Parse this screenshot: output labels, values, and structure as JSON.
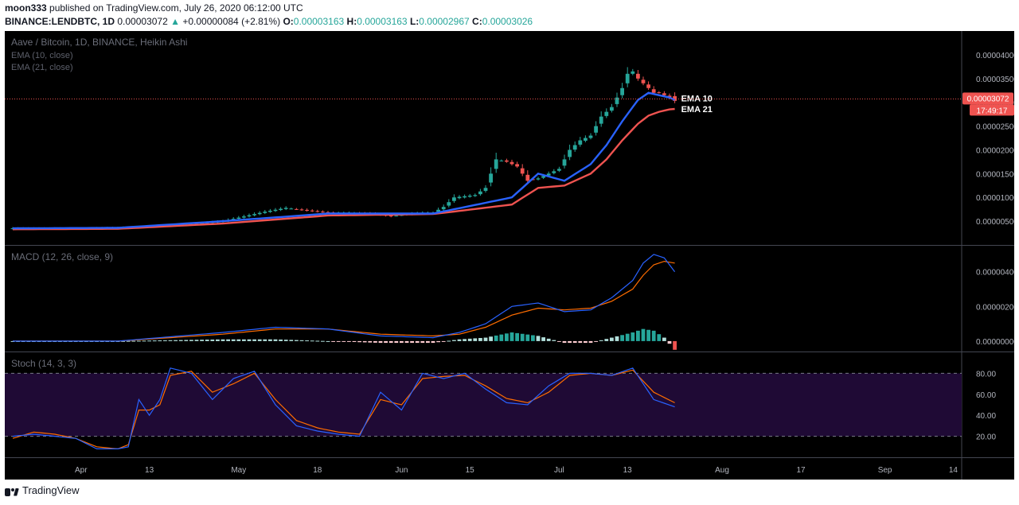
{
  "header": {
    "publisher": "moon333",
    "published_text": " published on TradingView.com, July 26, 2020 06:12:00 UTC",
    "symbol": "BINANCE:LENDBTC, 1D",
    "last": "0.00003072",
    "change": "+0.00000084 (+2.81%)",
    "o_label": "O:",
    "o": "0.00003163",
    "h_label": "H:",
    "h": "0.00003163",
    "l_label": "L:",
    "l": "0.00002967",
    "c_label": "C:",
    "c": "0.00003026"
  },
  "footer": {
    "brand": "TradingView"
  },
  "colors": {
    "up": "#26a69a",
    "down": "#ef5350",
    "ema10": "#2962ff",
    "ema21": "#ef5350",
    "macd": "#2962ff",
    "signal": "#ff6d00",
    "stoch_k": "#2962ff",
    "stoch_d": "#ff6d00",
    "stoch_band": "#1f0a35"
  },
  "chart_data": [
    {
      "type": "candlestick",
      "title": "Aave / Bitcoin, 1D, BINANCE, Heikin Ashi",
      "legend": [
        "EMA (10, close)",
        "EMA (21, close)"
      ],
      "annotations": [
        "EMA 10",
        "EMA 21"
      ],
      "price_label": "0.00003072",
      "countdown_label": "17:49:17",
      "y_ticks": [
        "0.00004000",
        "0.00003500",
        "0.00003000",
        "0.00002500",
        "0.00002000",
        "0.00001500",
        "0.00001000",
        "0.00000500"
      ],
      "y_tick_values": [
        4.0,
        3.5,
        3.0,
        2.5,
        2.0,
        1.5,
        1.0,
        0.5
      ],
      "y_unit_note_scale": 1e-05,
      "ylim": [
        0.0,
        4.5
      ],
      "x_ticks": [
        "Apr",
        "13",
        "May",
        "18",
        "Jun",
        "15",
        "Jul",
        "13",
        "Aug",
        "17",
        "Sep",
        "14"
      ],
      "x_tick_days": [
        13,
        26,
        43,
        58,
        74,
        87,
        104,
        117,
        135,
        150,
        166,
        179
      ],
      "series": [
        {
          "name": "EMA (10, close)",
          "x": [
            0,
            20,
            40,
            60,
            80,
            95,
            100,
            105,
            110,
            113,
            116,
            119,
            121,
            123,
            125,
            126
          ],
          "y": [
            0.35,
            0.36,
            0.5,
            0.66,
            0.66,
            1.0,
            1.5,
            1.35,
            1.7,
            2.1,
            2.6,
            3.05,
            3.2,
            3.15,
            3.1,
            3.05
          ]
        },
        {
          "name": "EMA (21, close)",
          "x": [
            0,
            20,
            40,
            60,
            80,
            95,
            100,
            105,
            110,
            113,
            116,
            119,
            121,
            123,
            125,
            126
          ],
          "y": [
            0.33,
            0.34,
            0.45,
            0.62,
            0.65,
            0.85,
            1.2,
            1.25,
            1.5,
            1.8,
            2.2,
            2.55,
            2.72,
            2.8,
            2.85,
            2.86
          ]
        },
        {
          "name": "Heikin Ashi close",
          "x": [
            0,
            10,
            20,
            30,
            40,
            48,
            52,
            56,
            60,
            64,
            68,
            72,
            76,
            78,
            80,
            82,
            84,
            88,
            90,
            92,
            94,
            96,
            98,
            100,
            102,
            104,
            106,
            108,
            110,
            112,
            114,
            116,
            117,
            118,
            119,
            120,
            121,
            122,
            123,
            124,
            125,
            126
          ],
          "y": [
            0.35,
            0.35,
            0.36,
            0.4,
            0.5,
            0.7,
            0.78,
            0.72,
            0.68,
            0.68,
            0.66,
            0.6,
            0.66,
            0.68,
            0.68,
            0.8,
            1.0,
            1.05,
            1.2,
            1.8,
            1.75,
            1.65,
            1.35,
            1.4,
            1.5,
            1.6,
            2.0,
            2.2,
            2.3,
            2.7,
            2.9,
            3.3,
            3.6,
            3.65,
            3.5,
            3.4,
            3.3,
            3.2,
            3.2,
            3.15,
            3.1,
            3.03
          ],
          "open": [
            0.34,
            0.35,
            0.35,
            0.39,
            0.48,
            0.67,
            0.75,
            0.74,
            0.69,
            0.67,
            0.67,
            0.62,
            0.64,
            0.67,
            0.67,
            0.76,
            0.95,
            1.02,
            1.15,
            1.7,
            1.78,
            1.7,
            1.45,
            1.38,
            1.47,
            1.57,
            1.9,
            2.12,
            2.25,
            2.6,
            2.85,
            3.2,
            3.5,
            3.6,
            3.55,
            3.45,
            3.35,
            3.25,
            3.22,
            3.18,
            3.13,
            3.16
          ]
        }
      ]
    },
    {
      "type": "line",
      "title": "MACD (12, 26, close, 9)",
      "y_ticks": [
        "0.00000400",
        "0.00000200",
        "0.00000000"
      ],
      "y_tick_values": [
        4.0,
        2.0,
        0.0
      ],
      "ylim": [
        -0.6,
        5.5
      ],
      "series": [
        {
          "name": "MACD",
          "x": [
            0,
            20,
            40,
            50,
            60,
            70,
            80,
            85,
            90,
            95,
            100,
            105,
            110,
            114,
            118,
            120,
            122,
            124,
            126
          ],
          "y": [
            0.0,
            0.0,
            0.5,
            0.8,
            0.7,
            0.3,
            0.2,
            0.5,
            1.0,
            2.0,
            2.2,
            1.7,
            1.8,
            2.5,
            3.5,
            4.5,
            5.0,
            4.8,
            4.0
          ]
        },
        {
          "name": "Signal",
          "x": [
            0,
            20,
            40,
            50,
            60,
            70,
            80,
            85,
            90,
            95,
            100,
            105,
            110,
            114,
            118,
            120,
            122,
            124,
            126
          ],
          "y": [
            0.0,
            0.0,
            0.4,
            0.7,
            0.7,
            0.4,
            0.3,
            0.4,
            0.8,
            1.5,
            1.9,
            1.8,
            1.9,
            2.3,
            3.0,
            3.8,
            4.4,
            4.6,
            4.5
          ]
        },
        {
          "name": "Histogram",
          "x": [
            0,
            20,
            40,
            50,
            60,
            70,
            80,
            85,
            90,
            95,
            100,
            105,
            110,
            114,
            118,
            120,
            122,
            124,
            126
          ],
          "y": [
            0.0,
            0.0,
            0.1,
            0.1,
            0.0,
            -0.1,
            -0.1,
            0.1,
            0.2,
            0.5,
            0.3,
            -0.1,
            -0.1,
            0.2,
            0.5,
            0.7,
            0.6,
            0.2,
            -0.5
          ]
        }
      ]
    },
    {
      "type": "line",
      "title": "Stoch (14, 3, 3)",
      "y_ticks": [
        "80.00",
        "60.00",
        "40.00",
        "20.00"
      ],
      "y_tick_values": [
        80,
        60,
        40,
        20
      ],
      "ylim": [
        0,
        100
      ],
      "band": [
        20,
        80
      ],
      "series": [
        {
          "name": "%K",
          "x": [
            0,
            4,
            8,
            12,
            16,
            20,
            22,
            24,
            26,
            28,
            30,
            34,
            38,
            42,
            46,
            50,
            54,
            58,
            62,
            66,
            70,
            74,
            78,
            82,
            86,
            90,
            94,
            98,
            102,
            106,
            110,
            114,
            118,
            122,
            126
          ],
          "y": [
            20,
            22,
            20,
            18,
            8,
            8,
            10,
            55,
            40,
            55,
            85,
            80,
            55,
            75,
            82,
            50,
            30,
            25,
            22,
            20,
            62,
            45,
            80,
            75,
            80,
            65,
            52,
            50,
            68,
            80,
            80,
            78,
            85,
            55,
            48
          ]
        },
        {
          "name": "%D",
          "x": [
            0,
            4,
            8,
            12,
            16,
            20,
            22,
            24,
            26,
            28,
            30,
            34,
            38,
            42,
            46,
            50,
            54,
            58,
            62,
            66,
            70,
            74,
            78,
            82,
            86,
            90,
            94,
            98,
            102,
            106,
            110,
            114,
            118,
            122,
            126
          ],
          "y": [
            18,
            24,
            22,
            18,
            10,
            8,
            12,
            45,
            45,
            50,
            78,
            82,
            62,
            70,
            80,
            55,
            35,
            28,
            24,
            22,
            55,
            50,
            75,
            77,
            78,
            68,
            56,
            52,
            62,
            78,
            80,
            78,
            83,
            62,
            52
          ]
        }
      ]
    }
  ]
}
